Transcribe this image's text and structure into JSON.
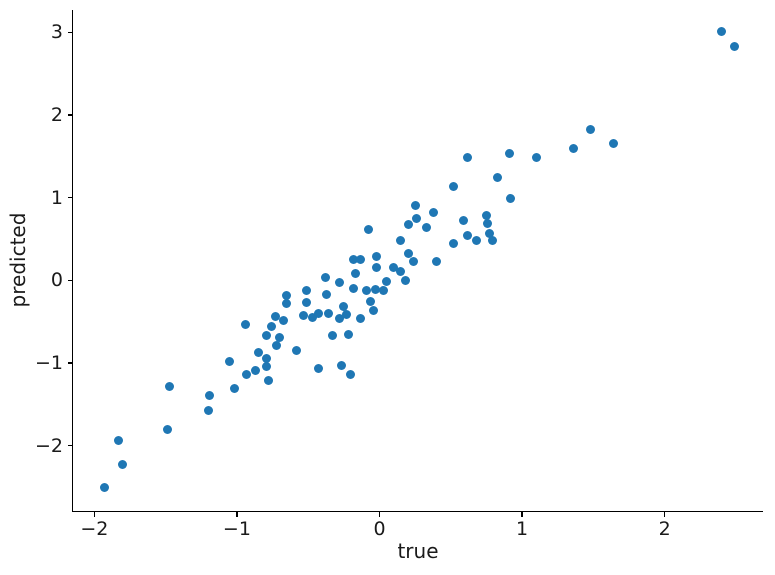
{
  "chart_data": {
    "type": "scatter",
    "title": "",
    "xlabel": "true",
    "ylabel": "predicted",
    "xlim": [
      -2.15,
      2.69
    ],
    "ylim": [
      -2.79,
      3.27
    ],
    "x_ticks": [
      -2,
      -1,
      0,
      1,
      2
    ],
    "y_ticks": [
      -2,
      -1,
      0,
      1,
      2,
      3
    ],
    "grid": false,
    "legend": null,
    "marker_color": "#1f77b4",
    "marker_diameter_px": 9,
    "points": [
      [
        2.4,
        3.01
      ],
      [
        2.49,
        2.83
      ],
      [
        1.48,
        1.83
      ],
      [
        1.64,
        1.65
      ],
      [
        1.36,
        1.59
      ],
      [
        1.1,
        1.49
      ],
      [
        0.62,
        1.49
      ],
      [
        0.91,
        1.53
      ],
      [
        0.83,
        1.24
      ],
      [
        0.52,
        1.14
      ],
      [
        0.92,
        0.99
      ],
      [
        0.25,
        0.9
      ],
      [
        0.38,
        0.82
      ],
      [
        0.26,
        0.75
      ],
      [
        0.2,
        0.68
      ],
      [
        0.33,
        0.64
      ],
      [
        -0.08,
        0.62
      ],
      [
        0.59,
        0.72
      ],
      [
        0.75,
        0.79
      ],
      [
        0.76,
        0.69
      ],
      [
        0.77,
        0.57
      ],
      [
        0.62,
        0.54
      ],
      [
        0.68,
        0.48
      ],
      [
        0.79,
        0.48
      ],
      [
        0.52,
        0.44
      ],
      [
        0.15,
        0.48
      ],
      [
        0.2,
        0.33
      ],
      [
        0.24,
        0.23
      ],
      [
        0.4,
        0.23
      ],
      [
        0.1,
        0.16
      ],
      [
        0.15,
        0.11
      ],
      [
        0.18,
        0.0
      ],
      [
        0.05,
        -0.01
      ],
      [
        -0.02,
        0.15
      ],
      [
        -0.17,
        0.08
      ],
      [
        -0.38,
        0.03
      ],
      [
        -0.28,
        -0.03
      ],
      [
        -0.18,
        0.25
      ],
      [
        -0.13,
        0.25
      ],
      [
        -0.02,
        0.29
      ],
      [
        -0.09,
        -0.12
      ],
      [
        -0.03,
        -0.11
      ],
      [
        -0.18,
        -0.1
      ],
      [
        0.03,
        -0.12
      ],
      [
        -0.06,
        -0.25
      ],
      [
        -0.04,
        -0.36
      ],
      [
        -0.25,
        -0.32
      ],
      [
        -0.23,
        -0.41
      ],
      [
        -0.28,
        -0.46
      ],
      [
        -0.13,
        -0.46
      ],
      [
        -0.33,
        -0.67
      ],
      [
        -0.22,
        -0.65
      ],
      [
        -0.65,
        -0.18
      ],
      [
        -0.65,
        -0.28
      ],
      [
        -0.51,
        -0.12
      ],
      [
        -0.51,
        -0.27
      ],
      [
        -0.37,
        -0.17
      ],
      [
        -0.53,
        -0.42
      ],
      [
        -0.47,
        -0.45
      ],
      [
        -0.43,
        -0.4
      ],
      [
        -0.36,
        -0.4
      ],
      [
        -0.67,
        -0.48
      ],
      [
        -0.73,
        -0.44
      ],
      [
        -0.76,
        -0.56
      ],
      [
        -0.79,
        -0.67
      ],
      [
        -0.7,
        -0.69
      ],
      [
        -0.94,
        -0.54
      ],
      [
        -0.58,
        -0.85
      ],
      [
        -0.85,
        -0.87
      ],
      [
        -0.72,
        -0.79
      ],
      [
        -1.05,
        -0.98
      ],
      [
        -0.93,
        -1.14
      ],
      [
        -0.87,
        -1.09
      ],
      [
        -0.79,
        -1.04
      ],
      [
        -0.78,
        -1.21
      ],
      [
        -0.79,
        -0.94
      ],
      [
        -0.43,
        -1.07
      ],
      [
        -0.27,
        -1.03
      ],
      [
        -0.2,
        -1.14
      ],
      [
        -1.02,
        -1.31
      ],
      [
        -1.19,
        -1.39
      ],
      [
        -1.2,
        -1.58
      ],
      [
        -1.47,
        -1.29
      ],
      [
        -1.49,
        -1.81
      ],
      [
        -1.83,
        -1.94
      ],
      [
        -1.8,
        -2.23
      ],
      [
        -1.93,
        -2.51
      ]
    ]
  }
}
